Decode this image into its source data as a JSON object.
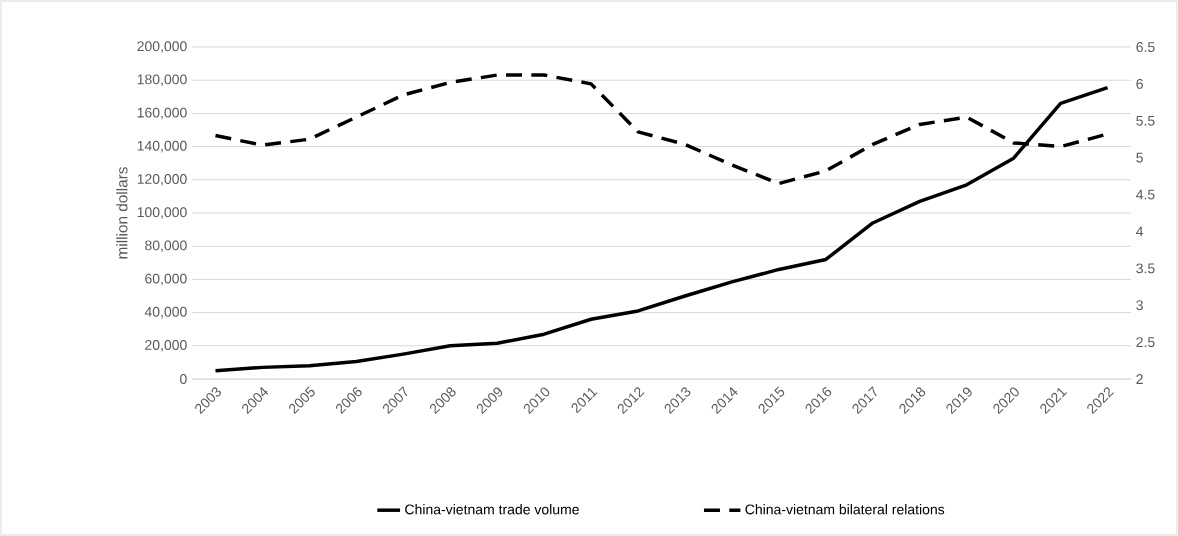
{
  "chart_data": {
    "type": "line",
    "categories": [
      "2003",
      "2004",
      "2005",
      "2006",
      "2007",
      "2008",
      "2009",
      "2010",
      "2011",
      "2012",
      "2013",
      "2014",
      "2015",
      "2016",
      "2017",
      "2018",
      "2019",
      "2020",
      "2021",
      "2022"
    ],
    "ylabel": "million dollars",
    "ylim": [
      0,
      200000
    ],
    "yticks": [
      {
        "value": 0,
        "label": "0"
      },
      {
        "value": 20000,
        "label": "20,000"
      },
      {
        "value": 40000,
        "label": "40,000"
      },
      {
        "value": 60000,
        "label": "60,000"
      },
      {
        "value": 80000,
        "label": "80,000"
      },
      {
        "value": 100000,
        "label": "100,000"
      },
      {
        "value": 120000,
        "label": "120,000"
      },
      {
        "value": 140000,
        "label": "140,000"
      },
      {
        "value": 160000,
        "label": "160,000"
      },
      {
        "value": 180000,
        "label": "180,000"
      },
      {
        "value": 200000,
        "label": "200,000"
      }
    ],
    "y2lim": [
      2,
      6.5
    ],
    "y2ticks": [
      2,
      2.5,
      3,
      3.5,
      4,
      4.5,
      5,
      5.5,
      6,
      6.5
    ],
    "grid": "y",
    "legend": "bottom",
    "series": [
      {
        "name": "China-vietnam trade volume",
        "color": "#000000",
        "line_style": "solid",
        "values": [
          5000,
          7000,
          8000,
          10500,
          15000,
          20000,
          21500,
          27000,
          36000,
          41000,
          50000,
          58500,
          66000,
          72000,
          94000,
          107000,
          117000,
          133000,
          166000,
          175500
        ]
      },
      {
        "name": "China-vietnam bilateral relations",
        "color": "#000000",
        "line_style": "dashed",
        "axis": "y2",
        "values": [
          5.3,
          5.17,
          5.25,
          5.55,
          5.85,
          6.02,
          6.12,
          6.12,
          6.0,
          5.35,
          5.18,
          4.9,
          4.65,
          4.82,
          5.18,
          5.45,
          5.55,
          5.2,
          5.15,
          5.32
        ]
      }
    ]
  }
}
